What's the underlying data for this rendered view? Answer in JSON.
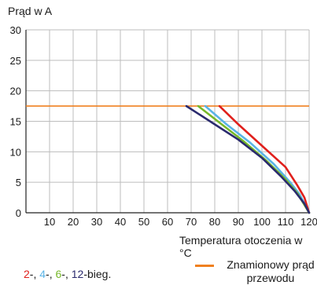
{
  "chart_data": {
    "type": "line",
    "ylabel": "Prąd w A",
    "xlabel": "Temperatura otoczenia w °C",
    "xlim": [
      0,
      120
    ],
    "ylim": [
      0,
      30
    ],
    "x_ticks": [
      "10",
      "20",
      "30",
      "40",
      "50",
      "60",
      "70",
      "80",
      "90",
      "100",
      "110",
      "120"
    ],
    "y_ticks": [
      "0",
      "5",
      "10",
      "15",
      "20",
      "25",
      "30"
    ],
    "grid": true,
    "series_label_suffix": "bieg.",
    "series": [
      {
        "name": "2",
        "color": "#e0201c",
        "points": [
          [
            82,
            17.5
          ],
          [
            90,
            14.5
          ],
          [
            100,
            11.0
          ],
          [
            110,
            7.5
          ],
          [
            115,
            4.5
          ],
          [
            118,
            2.5
          ],
          [
            120,
            0
          ]
        ]
      },
      {
        "name": "4",
        "color": "#5ab4e6",
        "points": [
          [
            76,
            17.5
          ],
          [
            85,
            14.5
          ],
          [
            95,
            11.5
          ],
          [
            105,
            8.0
          ],
          [
            112,
            5.0
          ],
          [
            116,
            3.0
          ],
          [
            120,
            0
          ]
        ]
      },
      {
        "name": "6",
        "color": "#76b82a",
        "points": [
          [
            73,
            17.5
          ],
          [
            82,
            14.8
          ],
          [
            92,
            11.8
          ],
          [
            102,
            8.5
          ],
          [
            110,
            5.5
          ],
          [
            115,
            3.2
          ],
          [
            120,
            0
          ]
        ]
      },
      {
        "name": "12",
        "color": "#2a2a6e",
        "points": [
          [
            68,
            17.5
          ],
          [
            80,
            14.5
          ],
          [
            90,
            12.0
          ],
          [
            100,
            9.0
          ],
          [
            108,
            6.0
          ],
          [
            114,
            3.5
          ],
          [
            118,
            1.5
          ],
          [
            120,
            0
          ]
        ]
      }
    ],
    "reference_line": {
      "label": "Znamionowy prąd przewodu",
      "value": 17.5,
      "color": "#f08020"
    }
  }
}
